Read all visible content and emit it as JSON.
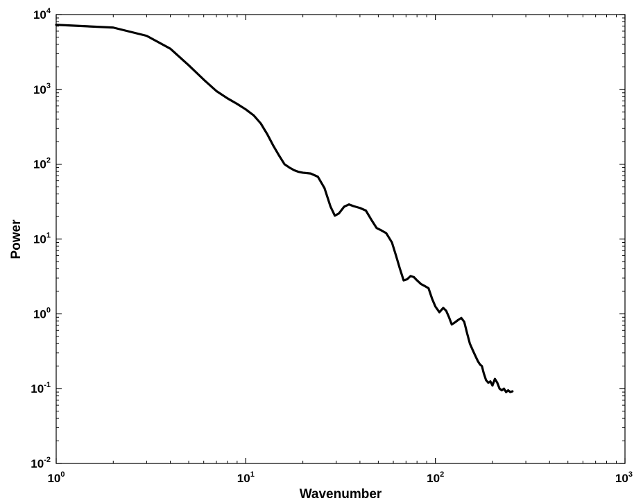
{
  "chart_data": {
    "type": "line",
    "xlabel": "Wavenumber",
    "ylabel": "Power",
    "xscale": "log",
    "yscale": "log",
    "xlim": [
      1,
      1000
    ],
    "ylim": [
      0.01,
      10000
    ],
    "grid": false,
    "x_ticks": [
      {
        "value": 1,
        "base": "10",
        "exp": "0"
      },
      {
        "value": 10,
        "base": "10",
        "exp": "1"
      },
      {
        "value": 100,
        "base": "10",
        "exp": "2"
      },
      {
        "value": 1000,
        "base": "10",
        "exp": "3"
      }
    ],
    "y_ticks": [
      {
        "value": 0.01,
        "base": "10",
        "exp": "-2"
      },
      {
        "value": 0.1,
        "base": "10",
        "exp": "-1"
      },
      {
        "value": 1,
        "base": "10",
        "exp": "0"
      },
      {
        "value": 10,
        "base": "10",
        "exp": "1"
      },
      {
        "value": 100,
        "base": "10",
        "exp": "2"
      },
      {
        "value": 1000,
        "base": "10",
        "exp": "3"
      },
      {
        "value": 10000,
        "base": "10",
        "exp": "4"
      }
    ],
    "series": [
      {
        "color": "#000000",
        "points": [
          [
            1,
            7300
          ],
          [
            2,
            6700
          ],
          [
            3,
            5200
          ],
          [
            4,
            3500
          ],
          [
            5,
            2100
          ],
          [
            6,
            1350
          ],
          [
            7,
            950
          ],
          [
            8,
            760
          ],
          [
            9,
            640
          ],
          [
            10,
            540
          ],
          [
            11,
            450
          ],
          [
            12,
            350
          ],
          [
            13,
            250
          ],
          [
            14,
            175
          ],
          [
            15,
            130
          ],
          [
            16,
            100
          ],
          [
            17,
            90
          ],
          [
            18,
            83
          ],
          [
            19,
            79
          ],
          [
            20,
            77
          ],
          [
            22,
            75
          ],
          [
            24,
            68
          ],
          [
            26,
            48
          ],
          [
            28,
            27
          ],
          [
            29.5,
            20.5
          ],
          [
            31,
            22
          ],
          [
            33,
            27
          ],
          [
            35,
            29
          ],
          [
            37,
            27.5
          ],
          [
            40,
            26
          ],
          [
            43,
            24
          ],
          [
            46,
            18
          ],
          [
            49,
            14
          ],
          [
            52,
            13
          ],
          [
            55,
            12
          ],
          [
            59,
            9
          ],
          [
            62,
            6
          ],
          [
            65,
            4
          ],
          [
            68,
            2.8
          ],
          [
            71,
            2.9
          ],
          [
            74,
            3.2
          ],
          [
            77,
            3.1
          ],
          [
            80,
            2.8
          ],
          [
            84,
            2.5
          ],
          [
            88,
            2.35
          ],
          [
            92,
            2.2
          ],
          [
            96,
            1.6
          ],
          [
            100,
            1.25
          ],
          [
            105,
            1.05
          ],
          [
            110,
            1.2
          ],
          [
            114,
            1.1
          ],
          [
            118,
            0.9
          ],
          [
            122,
            0.72
          ],
          [
            127,
            0.77
          ],
          [
            132,
            0.83
          ],
          [
            137,
            0.88
          ],
          [
            142,
            0.78
          ],
          [
            147,
            0.55
          ],
          [
            152,
            0.4
          ],
          [
            158,
            0.32
          ],
          [
            163,
            0.27
          ],
          [
            168,
            0.23
          ],
          [
            172,
            0.21
          ],
          [
            176,
            0.2
          ],
          [
            180,
            0.16
          ],
          [
            185,
            0.13
          ],
          [
            190,
            0.12
          ],
          [
            195,
            0.125
          ],
          [
            200,
            0.11
          ],
          [
            206,
            0.135
          ],
          [
            212,
            0.12
          ],
          [
            218,
            0.1
          ],
          [
            224,
            0.095
          ],
          [
            230,
            0.1
          ],
          [
            236,
            0.09
          ],
          [
            242,
            0.095
          ],
          [
            248,
            0.09
          ],
          [
            255,
            0.092
          ]
        ]
      }
    ]
  }
}
